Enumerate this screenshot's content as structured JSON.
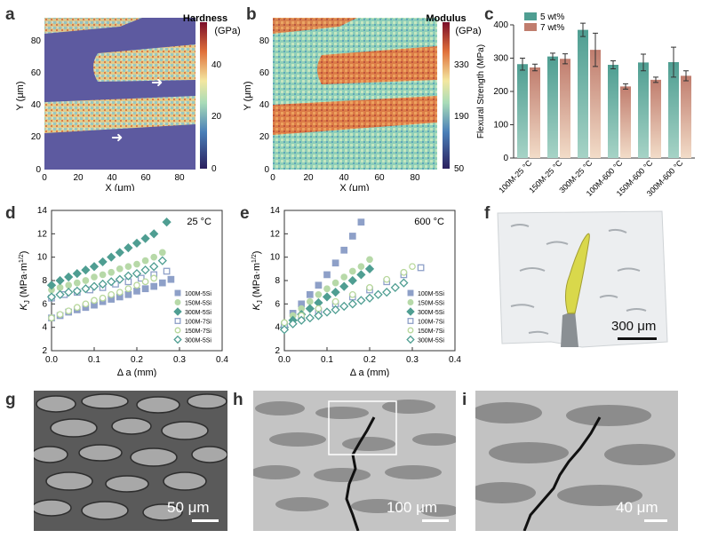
{
  "panels": {
    "a": {
      "letter": "a",
      "colorbar_title_1": "Hardness",
      "colorbar_title_2": "(GPa)",
      "colorbar_ticks": [
        "40",
        "20",
        "0"
      ],
      "xlabel": "X (μm)",
      "ylabel": "Y (μm)",
      "xticks": [
        "0",
        "20",
        "40",
        "60",
        "80"
      ],
      "yticks": [
        "0",
        "20",
        "40",
        "60",
        "80"
      ]
    },
    "b": {
      "letter": "b",
      "colorbar_title_1": "Modulus",
      "colorbar_title_2": "(GPa)",
      "colorbar_ticks": [
        "330",
        "190",
        "50"
      ],
      "xlabel": "X (μm)",
      "ylabel": "Y (μm)",
      "xticks": [
        "0",
        "20",
        "40",
        "60",
        "80"
      ],
      "yticks": [
        "0",
        "20",
        "40",
        "60",
        "80"
      ]
    },
    "c": {
      "letter": "c"
    },
    "d": {
      "letter": "d"
    },
    "e": {
      "letter": "e"
    },
    "f": {
      "letter": "f",
      "scale_label": "300 μm"
    },
    "g": {
      "letter": "g",
      "scale_label": "50 μm"
    },
    "h": {
      "letter": "h",
      "scale_label": "100 μm"
    },
    "i": {
      "letter": "i",
      "scale_label": "40 μm"
    }
  },
  "colors": {
    "teal": "#4f9e92",
    "teal_light": "#a6d3c6",
    "salmon": "#c07d6e",
    "salmon_light": "#f2dcc8",
    "blue_marker": "#8ea0c8",
    "green_marker": "#b7d9a8",
    "teal_marker": "#4f9e92",
    "light_green_marker": "#b8d89c"
  },
  "chart_data": [
    {
      "id": "c",
      "type": "bar",
      "categories": [
        "100M-25 °C",
        "150M-25 °C",
        "300M-25 °C",
        "100M-600 °C",
        "150M-600 °C",
        "300M-600 °C"
      ],
      "series": [
        {
          "name": "5 wt%",
          "values": [
            282,
            305,
            385,
            280,
            287,
            288
          ],
          "errors": [
            18,
            10,
            20,
            12,
            25,
            45
          ]
        },
        {
          "name": "7 wt%",
          "values": [
            272,
            298,
            325,
            215,
            235,
            247
          ],
          "errors": [
            10,
            15,
            50,
            8,
            8,
            15
          ]
        }
      ],
      "ylabel": "Flexural Strength (MPa)",
      "ylim": [
        0,
        400
      ],
      "yticks": [
        "0",
        "100",
        "200",
        "300",
        "400"
      ],
      "legend_position": "top"
    },
    {
      "id": "d",
      "type": "scatter",
      "annotation": "25 °C",
      "xlabel": "Δ a (mm)",
      "ylabel": "K_J (MPa·m^1/2)",
      "ylabel_main": "K",
      "ylabel_sub": "J",
      "ylabel_rest": " (MPa·m",
      "ylabel_sup": "1/2",
      "ylabel_end": ")",
      "xlim": [
        0,
        0.4
      ],
      "ylim": [
        2,
        14
      ],
      "xticks": [
        "0.0",
        "0.1",
        "0.2",
        "0.3",
        "0.4"
      ],
      "yticks": [
        "2",
        "4",
        "6",
        "8",
        "10",
        "12",
        "14"
      ],
      "legend_position": "bottom-right",
      "series": [
        {
          "name": "100M-5Si",
          "marker": "square-filled",
          "x": [
            0.0,
            0.02,
            0.04,
            0.06,
            0.08,
            0.1,
            0.12,
            0.14,
            0.16,
            0.18,
            0.2,
            0.22,
            0.24,
            0.26,
            0.28
          ],
          "y": [
            4.8,
            5.0,
            5.3,
            5.5,
            5.7,
            5.9,
            6.2,
            6.4,
            6.6,
            6.8,
            7.1,
            7.3,
            7.5,
            7.8,
            8.1
          ]
        },
        {
          "name": "150M-5Si",
          "marker": "circle-filled",
          "x": [
            0.0,
            0.02,
            0.04,
            0.06,
            0.08,
            0.1,
            0.12,
            0.14,
            0.16,
            0.18,
            0.2,
            0.22,
            0.24,
            0.26
          ],
          "y": [
            7.2,
            7.4,
            7.6,
            7.8,
            8.0,
            8.3,
            8.5,
            8.7,
            9.0,
            9.2,
            9.4,
            9.7,
            10.0,
            10.4
          ]
        },
        {
          "name": "300M-5Si",
          "marker": "diamond-filled",
          "x": [
            0.0,
            0.02,
            0.04,
            0.06,
            0.08,
            0.1,
            0.12,
            0.14,
            0.16,
            0.18,
            0.2,
            0.22,
            0.24,
            0.27
          ],
          "y": [
            7.6,
            8.0,
            8.3,
            8.6,
            8.9,
            9.2,
            9.6,
            10.0,
            10.4,
            10.8,
            11.2,
            11.6,
            12.0,
            13.0
          ]
        },
        {
          "name": "100M-7Si",
          "marker": "square-open",
          "x": [
            0.0,
            0.03,
            0.06,
            0.09,
            0.12,
            0.15,
            0.18,
            0.21,
            0.24,
            0.27
          ],
          "y": [
            6.5,
            6.8,
            7.0,
            7.2,
            7.4,
            7.7,
            7.9,
            8.2,
            8.5,
            8.8
          ]
        },
        {
          "name": "150M-7Si",
          "marker": "circle-open",
          "x": [
            0.0,
            0.02,
            0.04,
            0.06,
            0.08,
            0.1,
            0.12,
            0.14,
            0.16,
            0.18,
            0.2,
            0.22,
            0.24
          ],
          "y": [
            4.8,
            5.1,
            5.4,
            5.7,
            6.0,
            6.3,
            6.5,
            6.8,
            7.0,
            7.3,
            7.6,
            7.9,
            8.2
          ]
        },
        {
          "name": "300M-5Si",
          "marker": "diamond-open",
          "x": [
            0.0,
            0.02,
            0.04,
            0.06,
            0.08,
            0.1,
            0.12,
            0.14,
            0.16,
            0.18,
            0.2,
            0.22,
            0.24,
            0.26
          ],
          "y": [
            6.6,
            6.8,
            7.0,
            7.1,
            7.3,
            7.5,
            7.7,
            7.9,
            8.1,
            8.4,
            8.6,
            8.9,
            9.2,
            9.7
          ]
        }
      ]
    },
    {
      "id": "e",
      "type": "scatter",
      "annotation": "600 °C",
      "xlabel": "Δ a (mm)",
      "ylabel": "K_J (MPa·m^1/2)",
      "ylabel_main": "K",
      "ylabel_sub": "J",
      "ylabel_rest": " (MPa·m",
      "ylabel_sup": "1/2",
      "ylabel_end": ")",
      "xlim": [
        0,
        0.4
      ],
      "ylim": [
        2,
        14
      ],
      "xticks": [
        "0.0",
        "0.1",
        "0.2",
        "0.3",
        "0.4"
      ],
      "yticks": [
        "2",
        "4",
        "6",
        "8",
        "10",
        "12",
        "14"
      ],
      "legend_position": "bottom-right",
      "series": [
        {
          "name": "100M-5Si",
          "marker": "square-filled",
          "x": [
            0.0,
            0.02,
            0.04,
            0.06,
            0.08,
            0.1,
            0.12,
            0.14,
            0.16,
            0.18
          ],
          "y": [
            4.2,
            5.2,
            6.0,
            6.8,
            7.6,
            8.5,
            9.5,
            10.6,
            11.8,
            13.0
          ]
        },
        {
          "name": "150M-5Si",
          "marker": "circle-filled",
          "x": [
            0.0,
            0.02,
            0.04,
            0.06,
            0.08,
            0.1,
            0.12,
            0.14,
            0.16,
            0.18,
            0.2
          ],
          "y": [
            4.3,
            5.0,
            5.6,
            6.2,
            6.8,
            7.3,
            7.8,
            8.3,
            8.8,
            9.2,
            9.8
          ]
        },
        {
          "name": "300M-5Si",
          "marker": "diamond-filled",
          "x": [
            0.0,
            0.02,
            0.04,
            0.06,
            0.08,
            0.1,
            0.12,
            0.14,
            0.16,
            0.18,
            0.2
          ],
          "y": [
            4.0,
            4.6,
            5.1,
            5.6,
            6.1,
            6.6,
            7.0,
            7.5,
            8.0,
            8.5,
            9.0
          ]
        },
        {
          "name": "100M-7Si",
          "marker": "square-open",
          "x": [
            0.0,
            0.04,
            0.08,
            0.12,
            0.16,
            0.2,
            0.24,
            0.28,
            0.32
          ],
          "y": [
            4.2,
            4.8,
            5.4,
            6.0,
            6.6,
            7.2,
            7.9,
            8.5,
            9.1
          ]
        },
        {
          "name": "150M-7Si",
          "marker": "circle-open",
          "x": [
            0.0,
            0.04,
            0.08,
            0.12,
            0.16,
            0.2,
            0.24,
            0.28,
            0.3
          ],
          "y": [
            4.4,
            5.0,
            5.6,
            6.2,
            6.8,
            7.4,
            8.1,
            8.7,
            9.2
          ]
        },
        {
          "name": "300M-5Si",
          "marker": "diamond-open",
          "x": [
            0.0,
            0.02,
            0.04,
            0.06,
            0.08,
            0.1,
            0.12,
            0.14,
            0.16,
            0.18,
            0.2,
            0.22,
            0.24,
            0.26,
            0.28
          ],
          "y": [
            3.8,
            4.3,
            4.6,
            4.8,
            5.0,
            5.3,
            5.5,
            5.8,
            6.0,
            6.3,
            6.5,
            6.8,
            7.0,
            7.4,
            7.8
          ]
        }
      ]
    }
  ]
}
